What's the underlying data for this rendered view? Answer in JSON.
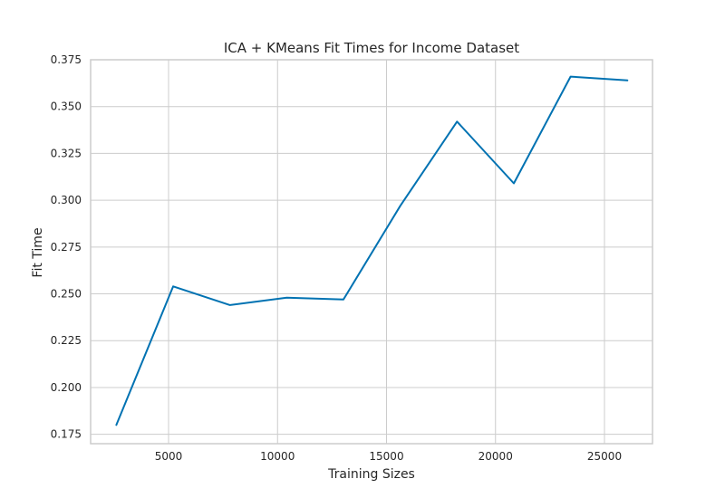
{
  "chart_data": {
    "type": "line",
    "title": "ICA + KMeans Fit Times for Income Dataset",
    "xlabel": "Training Sizes",
    "ylabel": "Fit Time",
    "xlim": [
      0,
      26000
    ],
    "ylim": [
      0.17,
      0.375
    ],
    "xticks": [
      5000,
      10000,
      15000,
      20000,
      25000
    ],
    "yticks": [
      0.175,
      0.2,
      0.225,
      0.25,
      0.275,
      0.3,
      0.325,
      0.35,
      0.375
    ],
    "x_tick_labels": [
      "5000",
      "10000",
      "15000",
      "20000",
      "25000"
    ],
    "y_tick_labels": [
      "0.175",
      "0.200",
      "0.225",
      "0.250",
      "0.275",
      "0.300",
      "0.325",
      "0.350",
      "0.375"
    ],
    "grid": true,
    "series": [
      {
        "color": "#0072b2",
        "x": [
          2605,
          5210,
          7815,
          10420,
          13025,
          15630,
          18235,
          20840,
          23445,
          26050
        ],
        "y": [
          0.18,
          0.254,
          0.244,
          0.248,
          0.247,
          0.297,
          0.342,
          0.309,
          0.366,
          0.364
        ]
      }
    ]
  }
}
